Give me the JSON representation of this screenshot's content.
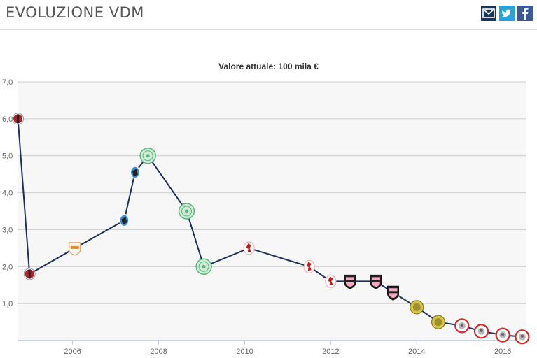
{
  "header": {
    "title": "EVOLUZIONE VDM",
    "share": {
      "mail_icon": "mail-icon",
      "twitter_icon": "twitter-icon",
      "facebook_icon": "facebook-icon"
    }
  },
  "colors": {
    "line": "#1f2f5c",
    "grid": "#cccccc",
    "plot_bg": "#f7f7f7",
    "axis": "#b8c8e0"
  },
  "chart_data": {
    "type": "line",
    "title": "Valore attuale: 100 mila €",
    "xlabel": "",
    "ylabel": "",
    "xlim": [
      2004.72,
      2016.55
    ],
    "ylim": [
      0,
      7
    ],
    "x_ticks": [
      2006,
      2008,
      2010,
      2012,
      2014,
      2016
    ],
    "y_ticks": [
      1.0,
      2.0,
      3.0,
      4.0,
      5.0,
      6.0,
      7.0
    ],
    "y_tick_labels": [
      "1,0",
      "2,0",
      "3,0",
      "4,0",
      "5,0",
      "6,0",
      "7,0"
    ],
    "grid": true,
    "series": [
      {
        "points": [
          {
            "x": 2004.73,
            "y": 6.0,
            "club": "red-black-crest"
          },
          {
            "x": 2005.0,
            "y": 1.8,
            "club": "red-black-crest"
          },
          {
            "x": 2006.05,
            "y": 2.5,
            "club": "orange-shield-crest"
          },
          {
            "x": 2007.2,
            "y": 3.25,
            "club": "blue-black-crest"
          },
          {
            "x": 2007.45,
            "y": 4.55,
            "club": "blue-black-crest"
          },
          {
            "x": 2007.75,
            "y": 5.0,
            "club": "green-clover-crest"
          },
          {
            "x": 2008.65,
            "y": 3.5,
            "club": "green-clover-crest"
          },
          {
            "x": 2009.05,
            "y": 2.0,
            "club": "green-clover-crest"
          },
          {
            "x": 2010.1,
            "y": 2.5,
            "club": "red-eagle-crest"
          },
          {
            "x": 2011.5,
            "y": 2.0,
            "club": "red-eagle-crest"
          },
          {
            "x": 2012.0,
            "y": 1.6,
            "club": "red-eagle-crest"
          },
          {
            "x": 2012.45,
            "y": 1.6,
            "club": "pink-black-shield-crest"
          },
          {
            "x": 2013.05,
            "y": 1.6,
            "club": "pink-black-shield-crest"
          },
          {
            "x": 2013.45,
            "y": 1.3,
            "club": "pink-black-shield-crest"
          },
          {
            "x": 2014.0,
            "y": 0.9,
            "club": "yellow-olive-crest"
          },
          {
            "x": 2014.5,
            "y": 0.5,
            "club": "yellow-olive-crest"
          },
          {
            "x": 2015.05,
            "y": 0.4,
            "club": "red-ring-crest"
          },
          {
            "x": 2015.5,
            "y": 0.25,
            "club": "red-ring-crest"
          },
          {
            "x": 2016.0,
            "y": 0.15,
            "club": "red-ring-crest"
          },
          {
            "x": 2016.45,
            "y": 0.1,
            "club": "red-ring-crest"
          }
        ]
      }
    ]
  }
}
